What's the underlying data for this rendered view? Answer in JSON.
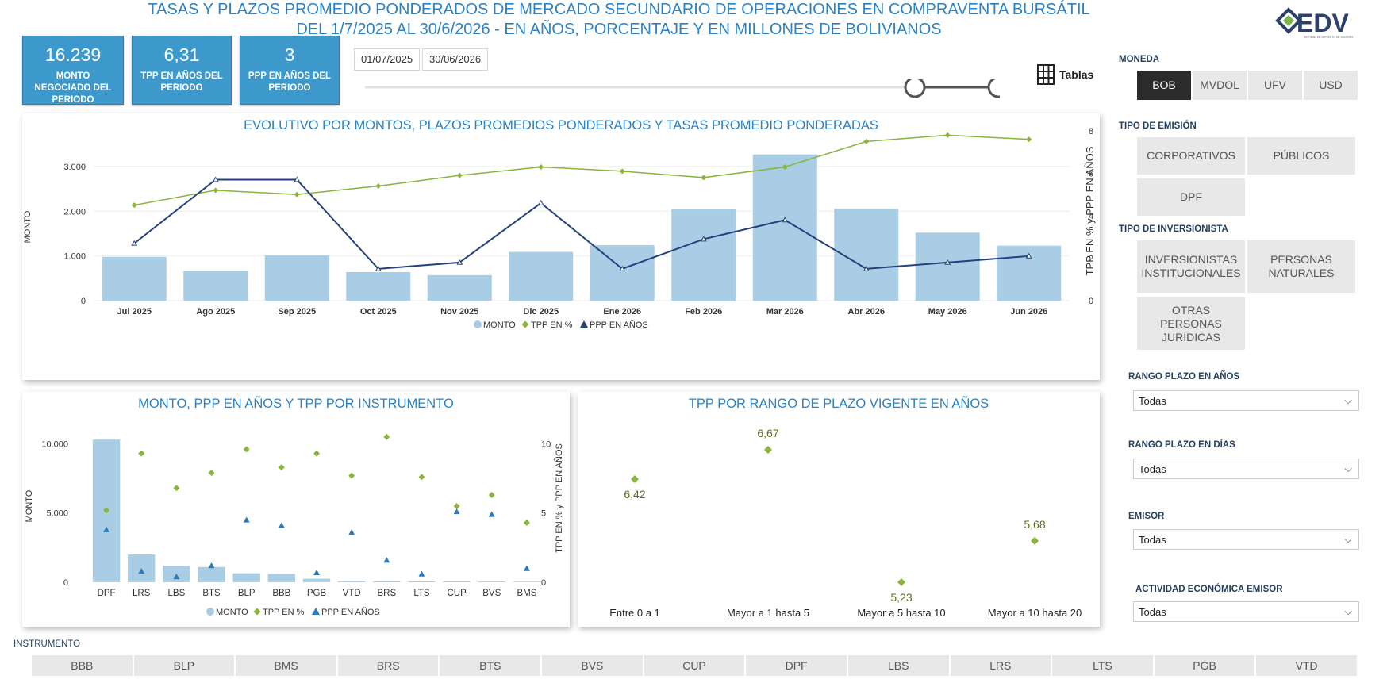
{
  "header": {
    "title_line1": "TASAS Y PLAZOS PROMEDIO PONDERADOS DE MERCADO SECUNDARIO DE OPERACIONES EN COMPRAVENTA BURSÁTIL",
    "title_line2": "DEL 1/7/2025 AL 30/6/2026 - EN AÑOS, PORCENTAJE Y EN MILLONES DE BOLIVIANOS",
    "logo_text": "EDV",
    "logo_sub": "ENTIDAD DE DEPÓSITO DE VALORES"
  },
  "kpis": [
    {
      "value": "16.239",
      "label": "MONTO NEGOCIADO DEL PERIODO"
    },
    {
      "value": "6,31",
      "label": "TPP EN AÑOS DEL PERIODO"
    },
    {
      "value": "3",
      "label": "PPP EN AÑOS DEL PERIODO"
    }
  ],
  "dates": {
    "start": "01/07/2025",
    "end": "30/06/2026"
  },
  "slider": {
    "start_fraction": 0.85,
    "end_fraction": 1.0
  },
  "tables_button": "Tablas",
  "filters": {
    "moneda": {
      "label": "MONEDA",
      "options": [
        "BOB",
        "MVDOL",
        "UFV",
        "USD"
      ],
      "selected": "BOB"
    },
    "tipo_emision": {
      "label": "TIPO DE EMISIÓN",
      "options": [
        "CORPORATIVOS",
        "PÚBLICOS",
        "DPF"
      ]
    },
    "tipo_inversionista": {
      "label": "TIPO DE INVERSIONISTA",
      "options": [
        "INVERSIONISTAS INSTITUCIONALES",
        "PERSONAS NATURALES",
        "OTRAS PERSONAS JURÍDICAS"
      ]
    },
    "rango_anos": {
      "label": "RANGO PLAZO EN AÑOS",
      "value": "Todas"
    },
    "rango_dias": {
      "label": "RANGO PLAZO EN DÍAS",
      "value": "Todas"
    },
    "emisor": {
      "label": "EMISOR",
      "value": "Todas"
    },
    "actividad": {
      "label": "ACTIVIDAD ECONÓMICA EMISOR",
      "value": "Todas"
    }
  },
  "instrumento_bar": {
    "label": "INSTRUMENTO",
    "items": [
      "BBB",
      "BLP",
      "BMS",
      "BRS",
      "BTS",
      "BVS",
      "CUP",
      "DPF",
      "LBS",
      "LRS",
      "LTS",
      "PGB",
      "VTD"
    ]
  },
  "colors": {
    "bar": "#a8cde5",
    "tpp": "#8bb43a",
    "ppp": "#25407c",
    "ppp2": "#2f7ab8",
    "title": "#2a82c4"
  },
  "chart_data": [
    {
      "type": "bar",
      "title": "EVOLUTIVO POR MONTOS, PLAZOS PROMEDIOS PONDERADOS Y TASAS PROMEDIO PONDERADAS",
      "categories": [
        "Jul 2025",
        "Ago 2025",
        "Sep 2025",
        "Oct 2025",
        "Nov 2025",
        "Dic 2025",
        "Ene 2026",
        "Feb 2026",
        "Mar 2026",
        "Abr 2026",
        "May 2026",
        "Jun 2026"
      ],
      "series": [
        {
          "name": "MONTO",
          "type": "bar",
          "axis": "left",
          "values": [
            980,
            660,
            1010,
            640,
            570,
            1090,
            1240,
            2040,
            3270,
            2060,
            1520,
            1230
          ]
        },
        {
          "name": "TPP EN %",
          "type": "line",
          "axis": "right",
          "values": [
            4.5,
            5.2,
            5.0,
            5.4,
            5.9,
            6.3,
            6.1,
            5.8,
            6.3,
            7.5,
            7.8,
            7.6
          ]
        },
        {
          "name": "PPP EN AÑOS",
          "type": "line",
          "axis": "right",
          "values": [
            2.7,
            5.7,
            5.7,
            1.5,
            1.8,
            4.6,
            1.5,
            2.9,
            3.8,
            1.5,
            1.8,
            2.1
          ]
        }
      ],
      "ylabel": "MONTO",
      "y2label": "TPP EN % y PPP EN AÑOS",
      "yticks": [
        "0",
        "1.000",
        "2.000",
        "3.000"
      ],
      "y2ticks": [
        "0",
        "2",
        "4",
        "6",
        "8"
      ],
      "ylim": [
        0,
        3300
      ],
      "y2lim": [
        0,
        8
      ],
      "legend": "bottom"
    },
    {
      "type": "bar",
      "title": "MONTO, PPP EN AÑOS Y TPP POR INSTRUMENTO",
      "categories": [
        "DPF",
        "LRS",
        "LBS",
        "BTS",
        "BLP",
        "BBB",
        "PGB",
        "VTD",
        "BRS",
        "LTS",
        "CUP",
        "BVS",
        "BMS"
      ],
      "series": [
        {
          "name": "MONTO",
          "type": "bar",
          "axis": "left",
          "values": [
            10300,
            2000,
            1200,
            1100,
            650,
            600,
            250,
            90,
            80,
            70,
            60,
            50,
            40
          ]
        },
        {
          "name": "TPP EN %",
          "type": "scatter",
          "axis": "right",
          "values": [
            5.2,
            9.3,
            6.8,
            7.9,
            9.6,
            8.3,
            9.3,
            7.7,
            10.5,
            7.6,
            5.5,
            6.3,
            4.3
          ]
        },
        {
          "name": "PPP EN AÑOS",
          "type": "scatter",
          "axis": "right",
          "values": [
            3.8,
            0.8,
            0.4,
            1.2,
            4.5,
            4.1,
            0.7,
            3.6,
            1.6,
            0.6,
            5.1,
            4.9,
            1.0
          ]
        }
      ],
      "ylabel": "MONTO",
      "y2label": "TPP EN % y PPP EN AÑOS",
      "yticks": [
        "0",
        "5.000",
        "10.000"
      ],
      "y2ticks": [
        "0",
        "5",
        "10"
      ],
      "ylim": [
        0,
        11000
      ],
      "y2lim": [
        0,
        11
      ],
      "legend": "bottom"
    },
    {
      "type": "scatter",
      "title": "TPP POR RANGO DE PLAZO VIGENTE EN AÑOS",
      "categories": [
        "Entre 0 a 1",
        "Mayor a 1 hasta 5",
        "Mayor a 5 hasta 10",
        "Mayor a 10 hasta 20"
      ],
      "values": [
        6.42,
        6.67,
        5.23,
        5.68
      ],
      "labels": [
        "6,42",
        "6,67",
        "5,23",
        "5,68"
      ],
      "ylim": [
        5.23,
        6.67
      ]
    }
  ]
}
